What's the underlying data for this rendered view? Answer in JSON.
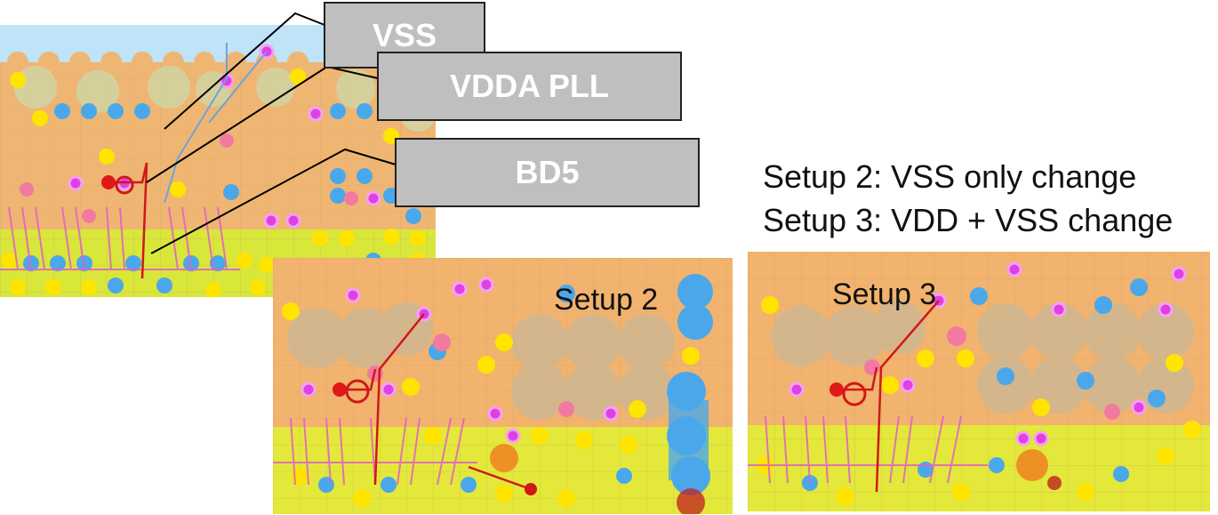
{
  "callouts": {
    "vss": "VSS",
    "vdda_pll": "VDDA PLL",
    "bd5": "BD5"
  },
  "captions": {
    "setup2_desc": "Setup 2: VSS only change",
    "setup3_desc": "Setup 3: VDD + VSS change"
  },
  "panels": {
    "setup2_label": "Setup 2",
    "setup3_label": "Setup 3"
  },
  "colors": {
    "board_orange": "#f2b36e",
    "board_yellow": "#e8ea38",
    "via_blue": "#4aa8ea",
    "via_magenta": "#e040e0",
    "via_yellow": "#ffe400",
    "trace_red": "#d01818",
    "antipad_gray": "#c8b89a",
    "top_sky": "#bfe3f7"
  }
}
